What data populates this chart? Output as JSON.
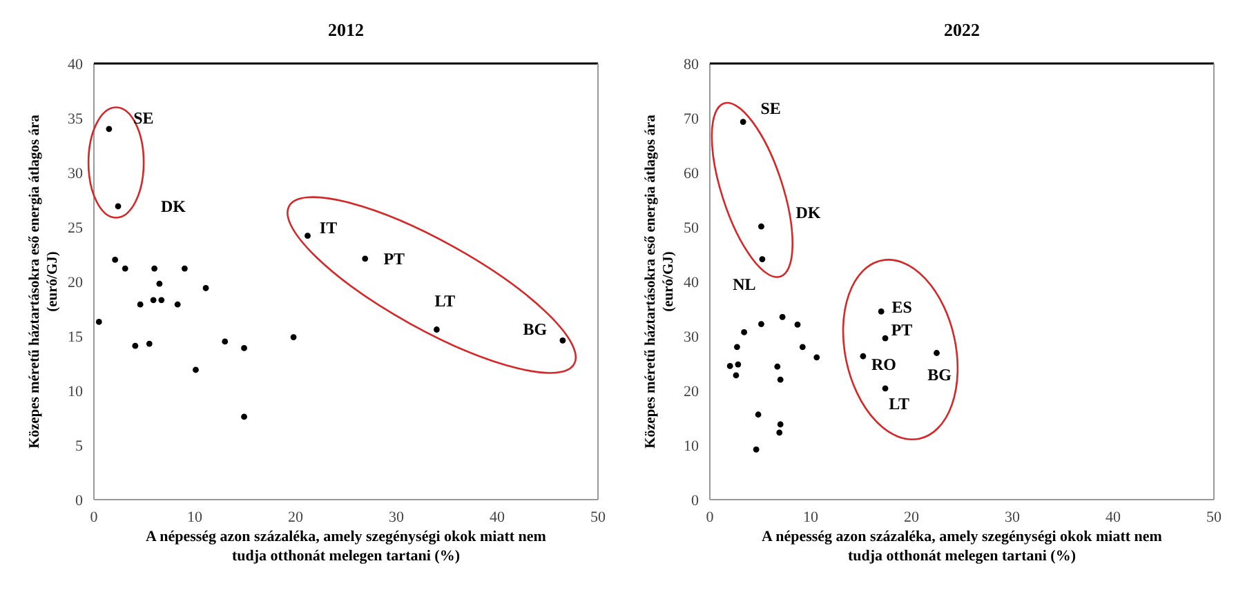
{
  "chart_data": [
    {
      "type": "scatter",
      "title": "2012",
      "xlabel": "A népesség azon százaléka, amely szegénységi okok miatt nem tudja otthonát melegen tartani (%)",
      "ylabel": "Közepes méretű háztartásokra eső energia átlagos ára (euró/GJ)",
      "xlim": [
        0,
        50
      ],
      "xticks": [
        0,
        10,
        20,
        30,
        40,
        50
      ],
      "ylim": [
        0,
        40
      ],
      "yticks": [
        0,
        5,
        10,
        15,
        20,
        25,
        30,
        35,
        40
      ],
      "marker": "circle",
      "series": [
        {
          "color": "#000000",
          "x": [
            1.5,
            2.4,
            2.1,
            3.1,
            6.0,
            9.0,
            6.5,
            11.1,
            4.6,
            5.9,
            6.7,
            8.3,
            0.5,
            4.1,
            5.5,
            13.0,
            14.9,
            10.1,
            14.9,
            19.8,
            21.2,
            26.9,
            34.0,
            46.5
          ],
          "values": [
            34.0,
            26.9,
            22.0,
            21.2,
            21.2,
            21.2,
            19.8,
            19.4,
            17.9,
            18.3,
            18.3,
            17.9,
            16.3,
            14.1,
            14.3,
            14.5,
            13.9,
            11.9,
            7.6,
            14.9,
            24.2,
            22.1,
            15.6,
            14.6
          ]
        }
      ],
      "annotations": [
        {
          "text": "SE",
          "x": 1.5,
          "y": 34.0
        },
        {
          "text": "DK",
          "x": 2.4,
          "y": 26.9
        },
        {
          "text": "IT",
          "x": 21.2,
          "y": 24.2
        },
        {
          "text": "PT",
          "x": 26.9,
          "y": 22.1
        },
        {
          "text": "LT",
          "x": 34.0,
          "y": 15.6
        },
        {
          "text": "BG",
          "x": 46.5,
          "y": 14.6
        }
      ]
    },
    {
      "type": "scatter",
      "title": "2022",
      "xlabel": "A népesség azon százaléka, amely szegénységi okok miatt nem tudja otthonát melegen tartani (%)",
      "ylabel": "Közepes méretű háztartásokra eső energia átlagos ára (euró/GJ)",
      "xlim": [
        0,
        50
      ],
      "xticks": [
        0,
        10,
        20,
        30,
        40,
        50
      ],
      "ylim": [
        0,
        80
      ],
      "yticks": [
        0,
        10,
        20,
        30,
        40,
        50,
        60,
        70,
        80
      ],
      "marker": "circle",
      "series": [
        {
          "color": "#000000",
          "x": [
            3.3,
            5.1,
            5.2,
            7.2,
            5.1,
            8.7,
            3.4,
            2.7,
            9.2,
            10.6,
            2.0,
            2.8,
            2.6,
            6.7,
            7.0,
            4.8,
            7.0,
            6.9,
            4.6,
            17.0,
            17.4,
            15.2,
            17.4,
            22.5
          ],
          "values": [
            69.3,
            50.1,
            44.1,
            33.5,
            32.2,
            32.1,
            30.7,
            28.0,
            28.0,
            26.1,
            24.5,
            24.8,
            22.8,
            24.4,
            22.0,
            15.6,
            13.8,
            12.3,
            9.2,
            34.5,
            29.6,
            26.3,
            20.4,
            26.9
          ]
        }
      ],
      "annotations": [
        {
          "text": "SE",
          "x": 3.3,
          "y": 69.3
        },
        {
          "text": "DK",
          "x": 5.1,
          "y": 50.1
        },
        {
          "text": "NL",
          "x": 5.2,
          "y": 44.1
        },
        {
          "text": "ES",
          "x": 17.0,
          "y": 34.5
        },
        {
          "text": "PT",
          "x": 17.4,
          "y": 29.6
        },
        {
          "text": "RO",
          "x": 15.2,
          "y": 26.3
        },
        {
          "text": "LT",
          "x": 17.4,
          "y": 20.4
        },
        {
          "text": "BG",
          "x": 22.5,
          "y": 26.9
        }
      ]
    }
  ]
}
